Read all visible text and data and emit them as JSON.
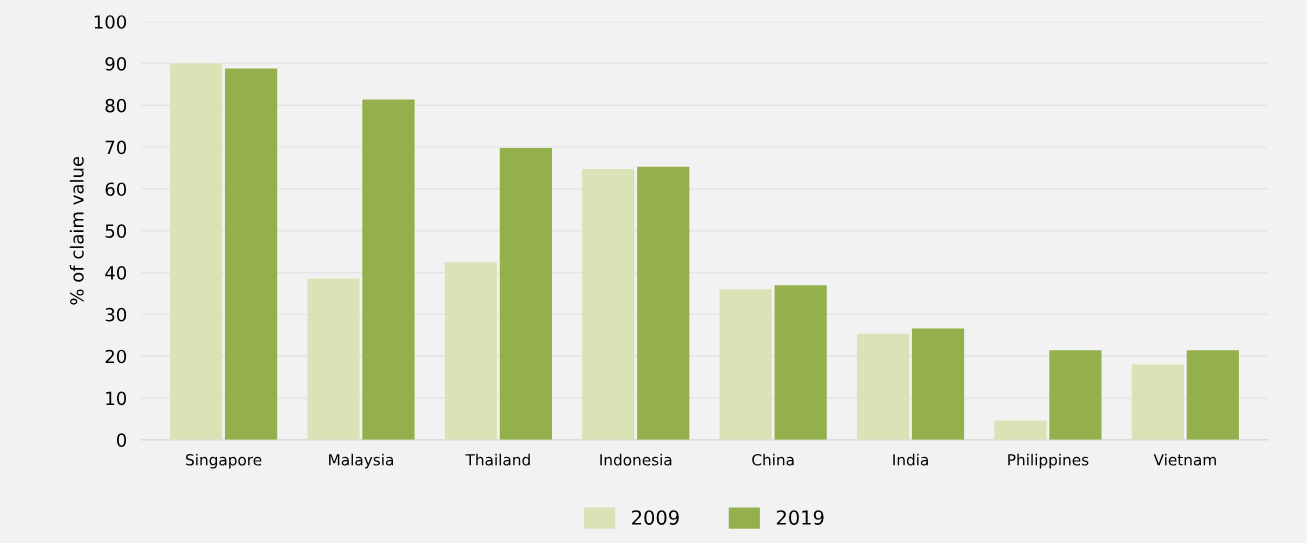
{
  "chart_data": {
    "type": "bar",
    "ylabel": "% of claim value",
    "categories": [
      "Singapore",
      "Malaysia",
      "Thailand",
      "Indonesia",
      "China",
      "India",
      "Philippines",
      "Vietnam"
    ],
    "series": [
      {
        "name": "2009",
        "color": "#d9e3b5",
        "values": [
          90,
          38.6,
          42.5,
          64.8,
          36,
          25.4,
          4.6,
          18
        ]
      },
      {
        "name": "2019",
        "color": "#94b04c",
        "values": [
          88.8,
          81.4,
          69.8,
          65.3,
          37,
          26.6,
          21.4,
          21.4
        ]
      }
    ],
    "ylim": [
      0,
      100
    ],
    "yticks": [
      0,
      10,
      20,
      30,
      40,
      50,
      60,
      70,
      80,
      90,
      100
    ],
    "grid": "y",
    "legend": "bottom"
  }
}
